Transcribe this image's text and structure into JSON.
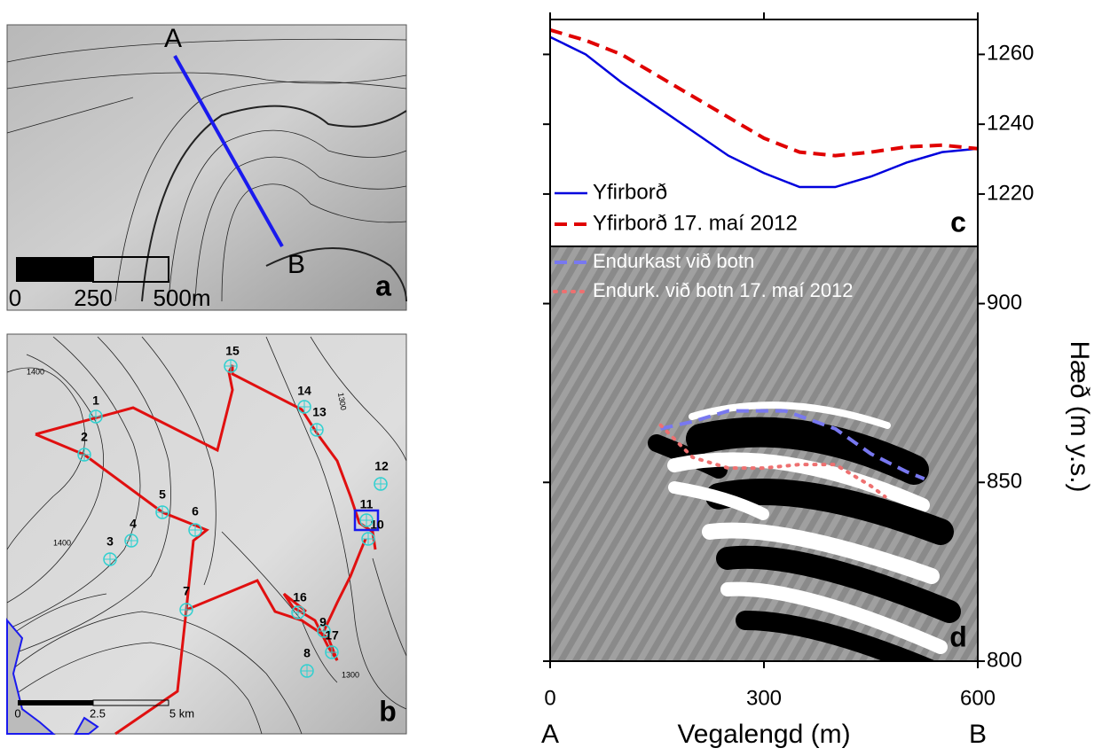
{
  "maps": {
    "a": {
      "panel_label": "a",
      "start_label": "A",
      "end_label": "B",
      "scale_labels": [
        "0",
        "250",
        "500m"
      ]
    },
    "b": {
      "panel_label": "b",
      "point_labels": [
        "1",
        "2",
        "3",
        "4",
        "5",
        "6",
        "7",
        "8",
        "9",
        "10",
        "11",
        "12",
        "13",
        "14",
        "15",
        "16",
        "17"
      ],
      "contour_labels": [
        "1400",
        "1400",
        "1300",
        "1300"
      ],
      "scale_labels": [
        "0",
        "2.5",
        "5 km"
      ]
    }
  },
  "chart_data": [
    {
      "type": "line",
      "panel_label": "c",
      "xlim": [
        0,
        600
      ],
      "ylim": [
        1205,
        1270
      ],
      "yticks": [
        1220,
        1240,
        1260
      ],
      "legend": "lower left",
      "series": [
        {
          "name": "Yfirborð",
          "color": "#0000dd",
          "dash": "solid",
          "x": [
            0,
            50,
            100,
            150,
            200,
            250,
            300,
            350,
            400,
            450,
            500,
            550,
            600
          ],
          "values": [
            1265,
            1260,
            1252,
            1245,
            1238,
            1231,
            1226,
            1222,
            1222,
            1225,
            1229,
            1232,
            1233
          ]
        },
        {
          "name": "Yfirborð 17. maí 2012",
          "color": "#e00000",
          "dash": "dashed",
          "x": [
            0,
            50,
            100,
            150,
            200,
            250,
            300,
            350,
            400,
            450,
            500,
            550,
            600
          ],
          "values": [
            1267,
            1264,
            1260,
            1254,
            1248,
            1242,
            1236,
            1232,
            1231,
            1232,
            1233.5,
            1234,
            1233
          ]
        }
      ]
    },
    {
      "type": "line",
      "panel_label": "d",
      "xlim": [
        0,
        600
      ],
      "xticks": [
        0,
        300,
        600
      ],
      "ylim": [
        800,
        916
      ],
      "yticks": [
        800,
        850,
        900
      ],
      "xlabel": "Vegalengd (m)",
      "xlabel_start": "A",
      "xlabel_end": "B",
      "ylabel": "Hæð (m y.s.)",
      "legend": "upper left",
      "series": [
        {
          "name": "Endurkast við botn",
          "color": "#7878f0",
          "dash": "dashed",
          "x": [
            155,
            200,
            250,
            330,
            400,
            450,
            500,
            525
          ],
          "values": [
            865,
            867,
            870,
            870,
            865,
            858,
            853,
            851
          ]
        },
        {
          "name": "Endurk. við botn 17. maí 2012",
          "color": "#ee7070",
          "dash": "dotted",
          "x": [
            155,
            200,
            250,
            300,
            350,
            400,
            450,
            470
          ],
          "values": [
            866,
            857,
            854,
            854,
            855,
            855,
            849,
            846
          ]
        }
      ]
    }
  ]
}
